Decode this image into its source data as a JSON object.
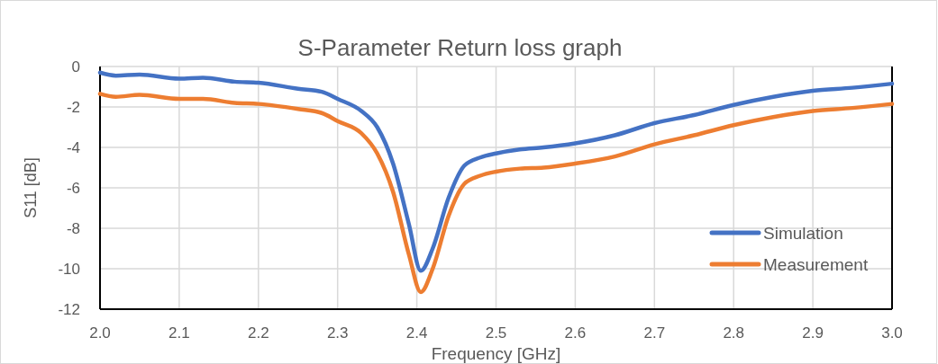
{
  "chart_data": {
    "type": "line",
    "title": "S-Parameter Return loss graph",
    "xlabel": "Frequency [GHz]",
    "ylabel": "S11 [dB]",
    "x": [
      2.0,
      2.02,
      2.05,
      2.1,
      2.13,
      2.17,
      2.2,
      2.25,
      2.28,
      2.3,
      2.33,
      2.35,
      2.37,
      2.39,
      2.405,
      2.42,
      2.44,
      2.46,
      2.48,
      2.5,
      2.53,
      2.56,
      2.6,
      2.65,
      2.7,
      2.75,
      2.8,
      2.85,
      2.9,
      2.95,
      3.0
    ],
    "series": [
      {
        "name": "Simulation",
        "color": "#4472c4",
        "values": [
          -0.3,
          -0.45,
          -0.4,
          -0.6,
          -0.55,
          -0.75,
          -0.8,
          -1.1,
          -1.25,
          -1.6,
          -2.2,
          -3.0,
          -4.8,
          -7.8,
          -10.1,
          -9.0,
          -6.5,
          -4.9,
          -4.5,
          -4.3,
          -4.1,
          -4.0,
          -3.8,
          -3.4,
          -2.8,
          -2.4,
          -1.9,
          -1.5,
          -1.2,
          -1.05,
          -0.85
        ]
      },
      {
        "name": "Measurement",
        "color": "#ed7d31",
        "values": [
          -1.35,
          -1.5,
          -1.4,
          -1.6,
          -1.6,
          -1.8,
          -1.85,
          -2.1,
          -2.3,
          -2.7,
          -3.3,
          -4.3,
          -6.2,
          -9.3,
          -11.15,
          -10.0,
          -7.4,
          -5.8,
          -5.4,
          -5.2,
          -5.05,
          -5.0,
          -4.8,
          -4.45,
          -3.85,
          -3.4,
          -2.9,
          -2.5,
          -2.2,
          -2.05,
          -1.85
        ]
      }
    ],
    "xlim": [
      2.0,
      3.0
    ],
    "xticks": [
      {
        "value": 2.0,
        "label": "2.0"
      },
      2.1,
      2.2,
      2.3,
      2.4,
      2.5,
      2.6,
      2.7,
      2.8,
      2.9,
      {
        "value": 3.0,
        "label": "3.0"
      }
    ],
    "ylim": [
      -12,
      0
    ],
    "yticks": [
      -12,
      -10,
      -8,
      -6,
      -4,
      -2,
      0
    ],
    "grid": true,
    "legend": "bottom right",
    "marker": "none",
    "line_style": "solid"
  }
}
